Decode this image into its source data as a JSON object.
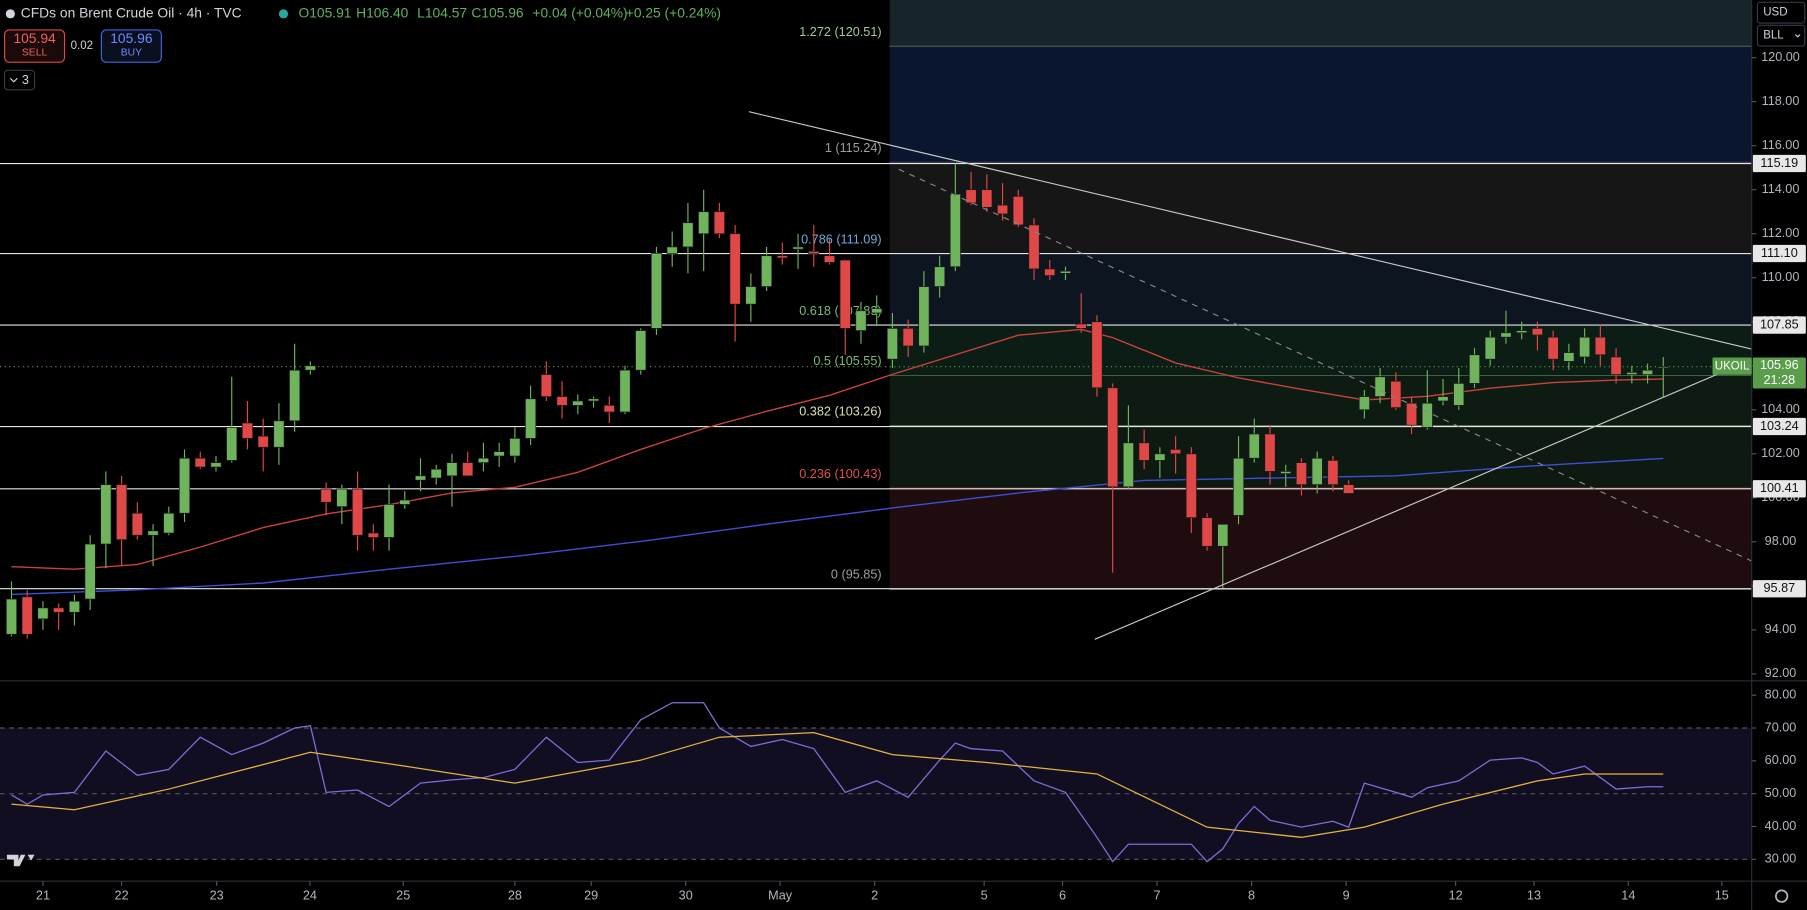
{
  "toolbar": {
    "symbol": "CFDs on Brent Crude Oil · 4h · TVC",
    "ohlc": [
      "O105.91",
      "H106.40",
      "L104.57",
      "C105.96"
    ],
    "change": "+0.04 (+0.04%)",
    "change_2": "+0.25 (+0.24%)",
    "sell_price": "105.94",
    "sell": "SELL",
    "spread": "0.02",
    "buy_price": "105.96",
    "buy": "BUY",
    "indicators": "3",
    "currency": "USD",
    "unit": "BLL"
  },
  "chart_data": [
    {
      "type": "candlestick",
      "up_color": "#6fb35d",
      "down_color": "#e04848",
      "open": [
        93.8,
        95.5,
        94.5,
        95.0,
        94.8,
        95.4,
        97.9,
        100.6,
        99.3,
        98.3,
        98.4,
        99.3,
        101.8,
        101.4,
        101.7,
        103.4,
        102.8,
        102.3,
        103.5,
        105.8,
        100.4,
        99.6,
        100.4,
        98.4,
        98.2,
        99.7,
        100.8,
        100.9,
        101.0,
        101.6,
        101.6,
        101.9,
        101.9,
        102.7,
        105.6,
        104.6,
        104.2,
        104.4,
        104.2,
        103.9,
        105.8,
        107.7,
        111.1,
        111.4,
        112.0,
        113.0,
        112.0,
        108.8,
        109.6,
        111.0,
        111.3,
        111.2,
        111.0,
        110.8,
        107.6,
        108.4,
        106.3,
        107.7,
        106.9,
        109.6,
        110.5,
        114.0,
        114.0,
        113.3,
        113.7,
        112.4,
        110.4,
        110.2,
        107.9,
        108.0,
        105.0,
        100.5,
        102.5,
        101.7,
        102.2,
        102.0,
        99.1,
        97.8,
        99.2,
        101.8,
        102.9,
        101.1,
        101.6,
        100.6,
        101.7,
        100.6,
        104.0,
        104.6,
        105.3,
        104.3,
        103.2,
        104.4,
        104.2,
        105.2,
        106.3,
        107.3,
        107.5,
        107.7,
        107.3,
        106.2,
        106.4,
        107.3,
        106.4,
        105.6,
        105.6,
        105.91
      ],
      "high": [
        96.2,
        95.8,
        95.3,
        95.2,
        95.6,
        98.3,
        101.2,
        101.0,
        99.8,
        98.8,
        99.6,
        102.2,
        102.1,
        101.9,
        105.5,
        104.4,
        103.6,
        104.3,
        107.0,
        106.2,
        100.7,
        100.6,
        101.2,
        98.8,
        100.6,
        100.3,
        101.8,
        101.5,
        102.0,
        102.1,
        102.5,
        102.5,
        103.2,
        105.1,
        106.2,
        105.3,
        104.7,
        104.6,
        104.6,
        106.0,
        107.7,
        111.4,
        112.1,
        113.4,
        114.0,
        113.4,
        112.4,
        110.2,
        111.4,
        111.6,
        112.0,
        112.4,
        111.8,
        110.8,
        108.9,
        109.2,
        108.4,
        108.1,
        110.3,
        111.0,
        115.2,
        114.8,
        114.7,
        114.3,
        114.0,
        112.7,
        110.8,
        110.5,
        109.3,
        108.3,
        105.2,
        104.2,
        103.1,
        102.3,
        102.8,
        102.3,
        99.3,
        98.8,
        102.8,
        103.6,
        103.3,
        101.5,
        101.8,
        102.1,
        101.9,
        100.8,
        104.9,
        105.9,
        105.7,
        104.6,
        105.8,
        105.4,
        105.9,
        106.8,
        107.6,
        108.5,
        108.0,
        108.0,
        107.6,
        107.0,
        107.7,
        107.9,
        106.8,
        106.0,
        106.1,
        106.4
      ],
      "low": [
        93.7,
        93.6,
        94.0,
        94.0,
        94.2,
        94.9,
        96.8,
        96.9,
        98.1,
        96.9,
        98.3,
        98.9,
        101.3,
        101.2,
        101.6,
        102.2,
        101.2,
        101.5,
        103.0,
        105.6,
        99.2,
        98.8,
        97.6,
        97.6,
        97.6,
        99.5,
        100.3,
        100.6,
        99.6,
        101.0,
        101.2,
        101.4,
        101.6,
        102.4,
        104.4,
        103.6,
        103.8,
        104.1,
        103.4,
        103.8,
        105.6,
        107.4,
        110.5,
        110.2,
        110.3,
        111.8,
        107.1,
        108.0,
        109.4,
        110.6,
        110.4,
        110.5,
        110.6,
        106.5,
        107.0,
        107.8,
        105.9,
        106.4,
        106.6,
        109.1,
        110.3,
        113.3,
        113.0,
        112.6,
        112.3,
        109.9,
        109.9,
        109.9,
        107.5,
        104.6,
        96.6,
        100.4,
        101.3,
        100.9,
        101.1,
        98.4,
        97.6,
        95.9,
        98.8,
        101.6,
        100.6,
        100.5,
        100.1,
        100.2,
        100.3,
        100.2,
        103.6,
        104.3,
        104.0,
        102.9,
        103.1,
        104.2,
        104.0,
        105.0,
        106.0,
        107.0,
        107.2,
        106.7,
        105.8,
        105.8,
        106.1,
        106.0,
        105.2,
        105.2,
        105.2,
        104.57
      ],
      "close": [
        95.4,
        93.8,
        95.0,
        94.8,
        95.3,
        97.9,
        100.6,
        98.1,
        98.3,
        98.5,
        99.3,
        101.8,
        101.4,
        101.6,
        103.2,
        102.7,
        102.3,
        103.5,
        105.8,
        106.0,
        99.8,
        100.4,
        98.3,
        98.2,
        99.7,
        99.9,
        101.0,
        101.3,
        101.6,
        101.0,
        101.8,
        102.1,
        102.7,
        104.5,
        104.6,
        104.2,
        104.4,
        104.5,
        103.9,
        105.8,
        107.6,
        111.1,
        111.4,
        112.5,
        113.0,
        112.0,
        108.8,
        109.6,
        111.0,
        110.9,
        111.4,
        111.1,
        110.7,
        107.7,
        108.5,
        108.6,
        107.7,
        106.9,
        109.6,
        110.5,
        113.8,
        113.4,
        113.2,
        112.9,
        112.4,
        110.4,
        110.1,
        110.3,
        107.7,
        105.0,
        100.5,
        102.5,
        101.7,
        102.0,
        102.0,
        99.1,
        97.8,
        98.8,
        101.8,
        102.9,
        101.2,
        101.2,
        100.6,
        101.8,
        100.6,
        100.2,
        104.6,
        105.5,
        104.1,
        103.3,
        104.3,
        104.6,
        105.2,
        106.5,
        107.3,
        107.5,
        107.6,
        107.4,
        106.3,
        106.6,
        107.3,
        106.5,
        105.6,
        105.7,
        105.8,
        105.96
      ],
      "overlays": [
        {
          "color": "#c8433c",
          "x": [
            0,
            4,
            8,
            12,
            16,
            20,
            24,
            28,
            32,
            36,
            40,
            44,
            48,
            52,
            56,
            60,
            64,
            68,
            70,
            74,
            78,
            82,
            86,
            90,
            94,
            98,
            102,
            105
          ],
          "values": [
            96.87,
            96.76,
            96.97,
            97.76,
            98.65,
            99.27,
            99.69,
            100.22,
            100.48,
            101.16,
            102.2,
            103.15,
            103.93,
            104.66,
            105.61,
            106.5,
            107.39,
            107.65,
            107.28,
            106.13,
            105.45,
            104.93,
            104.45,
            104.61,
            104.98,
            105.24,
            105.35,
            105.4
          ]
        },
        {
          "color": "#3d4fd6",
          "x": [
            0,
            8,
            16,
            24,
            32,
            40,
            48,
            56,
            64,
            72,
            80,
            88,
            96,
            105
          ],
          "values": [
            95.61,
            95.82,
            96.13,
            96.76,
            97.34,
            98.02,
            98.8,
            99.54,
            100.22,
            100.79,
            100.9,
            101.0,
            101.42,
            101.79
          ]
        }
      ],
      "fib_levels": [
        {
          "label": "1.272 (120.51)",
          "value": 120.51,
          "color": "#9ccc9c",
          "fill": "#17252a"
        },
        {
          "label": "1 (115.24)",
          "value": 115.24,
          "color": "#9e9e9e",
          "fill": "#0a1530"
        },
        {
          "label": "0.786 (111.09)",
          "value": 111.09,
          "color": "#6fa8dc",
          "fill": "#161616"
        },
        {
          "label": "0.618 (107.83)",
          "value": 107.83,
          "color": "#7cb87c",
          "fill": "#0d1620"
        },
        {
          "label": "0.5 (105.55)",
          "value": 105.55,
          "color": "#7cb87c",
          "fill": "#0c1d15"
        },
        {
          "label": "0.382 (103.26)",
          "value": 103.26,
          "color": "#d4e2b0",
          "fill": "#0d1b13"
        },
        {
          "label": "0.236 (100.43)",
          "value": 100.43,
          "color": "#e05050",
          "fill": "#0e1a11"
        },
        {
          "label": "0 (95.85)",
          "value": 95.85,
          "color": "#9e9e9e",
          "fill": "#1e0c0e"
        }
      ],
      "price_lines": [
        115.19,
        {
          "value": 111.1,
          "label": "111.10"
        },
        107.85,
        103.24,
        100.41,
        95.87
      ],
      "last_price": 105.96,
      "last_name": "UKOIL",
      "countdown": "21:28",
      "last_color": "#5a9e4c",
      "xlim": [
        -0.73,
        110.62
      ],
      "ylim": [
        91.74,
        122.62
      ],
      "yticks": [
        {
          "value": 92,
          "label": "92.00"
        },
        {
          "value": 94,
          "label": "94.00"
        },
        {
          "value": 96,
          "label": "96.00"
        },
        {
          "value": 98,
          "label": "98.00"
        },
        {
          "value": 100,
          "label": "100.00"
        },
        {
          "value": 102,
          "label": "102.00"
        },
        {
          "value": 104,
          "label": "104.00"
        },
        {
          "value": 106,
          "label": "106.00"
        },
        {
          "value": 108,
          "label": "108.00"
        },
        {
          "value": 110,
          "label": "110.00"
        },
        {
          "value": 112,
          "label": "112.00"
        },
        {
          "value": 114,
          "label": "114.00"
        },
        {
          "value": 116,
          "label": "116.00"
        },
        {
          "value": 118,
          "label": "118.00"
        },
        {
          "value": 120,
          "label": "120.00"
        }
      ]
    },
    {
      "type": "line",
      "series": [
        {
          "color": "#7e6fd6",
          "x": [
            0,
            1,
            2,
            4,
            6,
            8,
            10,
            12,
            14,
            16,
            18,
            19,
            20,
            22,
            24,
            26,
            28,
            30,
            32,
            34,
            36,
            38,
            40,
            42,
            44,
            45,
            47,
            49,
            51,
            53,
            55,
            57,
            59,
            60,
            61,
            63,
            65,
            67,
            69,
            70,
            71,
            73,
            75,
            76,
            77,
            78,
            79,
            80,
            82,
            84,
            85,
            86,
            88,
            89,
            90,
            92,
            94,
            96,
            97,
            98,
            100,
            102,
            104,
            105
          ],
          "values": [
            49.6,
            46.8,
            49.6,
            50.4,
            63.0,
            55.6,
            57.4,
            67.2,
            61.9,
            65.4,
            70.0,
            70.7,
            50.4,
            51.1,
            46.1,
            53.2,
            54.2,
            54.9,
            57.4,
            67.2,
            59.5,
            60.2,
            72.5,
            77.7,
            77.7,
            70.0,
            64.4,
            66.5,
            63.7,
            50.4,
            53.9,
            48.9,
            60.2,
            65.4,
            63.7,
            63.0,
            53.9,
            50.4,
            36.7,
            29.3,
            34.6,
            34.6,
            34.6,
            29.3,
            33.2,
            40.9,
            46.1,
            41.9,
            39.8,
            41.6,
            39.8,
            53.2,
            50.4,
            48.9,
            51.8,
            53.9,
            60.2,
            60.9,
            59.5,
            56.0,
            58.4,
            51.4,
            52.1,
            52.1
          ]
        },
        {
          "color": "#e3b341",
          "x": [
            0,
            4,
            10,
            19,
            25,
            32,
            40,
            45,
            51,
            56,
            62,
            69,
            76,
            82,
            86,
            91,
            97,
            100,
            105
          ],
          "values": [
            46.8,
            45.1,
            51.4,
            62.6,
            58.4,
            53.2,
            60.2,
            67.2,
            68.6,
            61.9,
            59.5,
            56.0,
            39.8,
            36.7,
            39.8,
            46.8,
            53.9,
            56.0,
            56.0
          ]
        }
      ],
      "ref_lines": [
        70,
        50,
        30
      ],
      "band_color": "#120e22",
      "xlim": [
        -0.73,
        110.62
      ],
      "ylim": [
        23.33,
        84.04
      ],
      "yticks": [
        {
          "value": 30,
          "label": "30.00"
        },
        {
          "value": 40,
          "label": "40.00"
        },
        {
          "value": 50,
          "label": "50.00"
        },
        {
          "value": 60,
          "label": "60.00"
        },
        {
          "value": 70,
          "label": "70.00"
        },
        {
          "value": 80,
          "label": "80.00"
        }
      ],
      "xticks": [
        {
          "value": 2.0,
          "label": "21"
        },
        {
          "value": 7.0,
          "label": "22"
        },
        {
          "value": 13.04,
          "label": "23"
        },
        {
          "value": 18.97,
          "label": "24"
        },
        {
          "value": 24.9,
          "label": "25"
        },
        {
          "value": 32.0,
          "label": "28"
        },
        {
          "value": 36.85,
          "label": "29"
        },
        {
          "value": 42.86,
          "label": "30"
        },
        {
          "value": 48.86,
          "label": "May"
        },
        {
          "value": 54.87,
          "label": "2"
        },
        {
          "value": 61.83,
          "label": "5"
        },
        {
          "value": 66.81,
          "label": "6"
        },
        {
          "value": 72.82,
          "label": "7"
        },
        {
          "value": 78.83,
          "label": "8"
        },
        {
          "value": 84.84,
          "label": "9"
        },
        {
          "value": 91.8,
          "label": "12"
        },
        {
          "value": 96.78,
          "label": "13"
        },
        {
          "value": 102.78,
          "label": "14"
        },
        {
          "value": 108.72,
          "label": "15"
        }
      ]
    }
  ]
}
